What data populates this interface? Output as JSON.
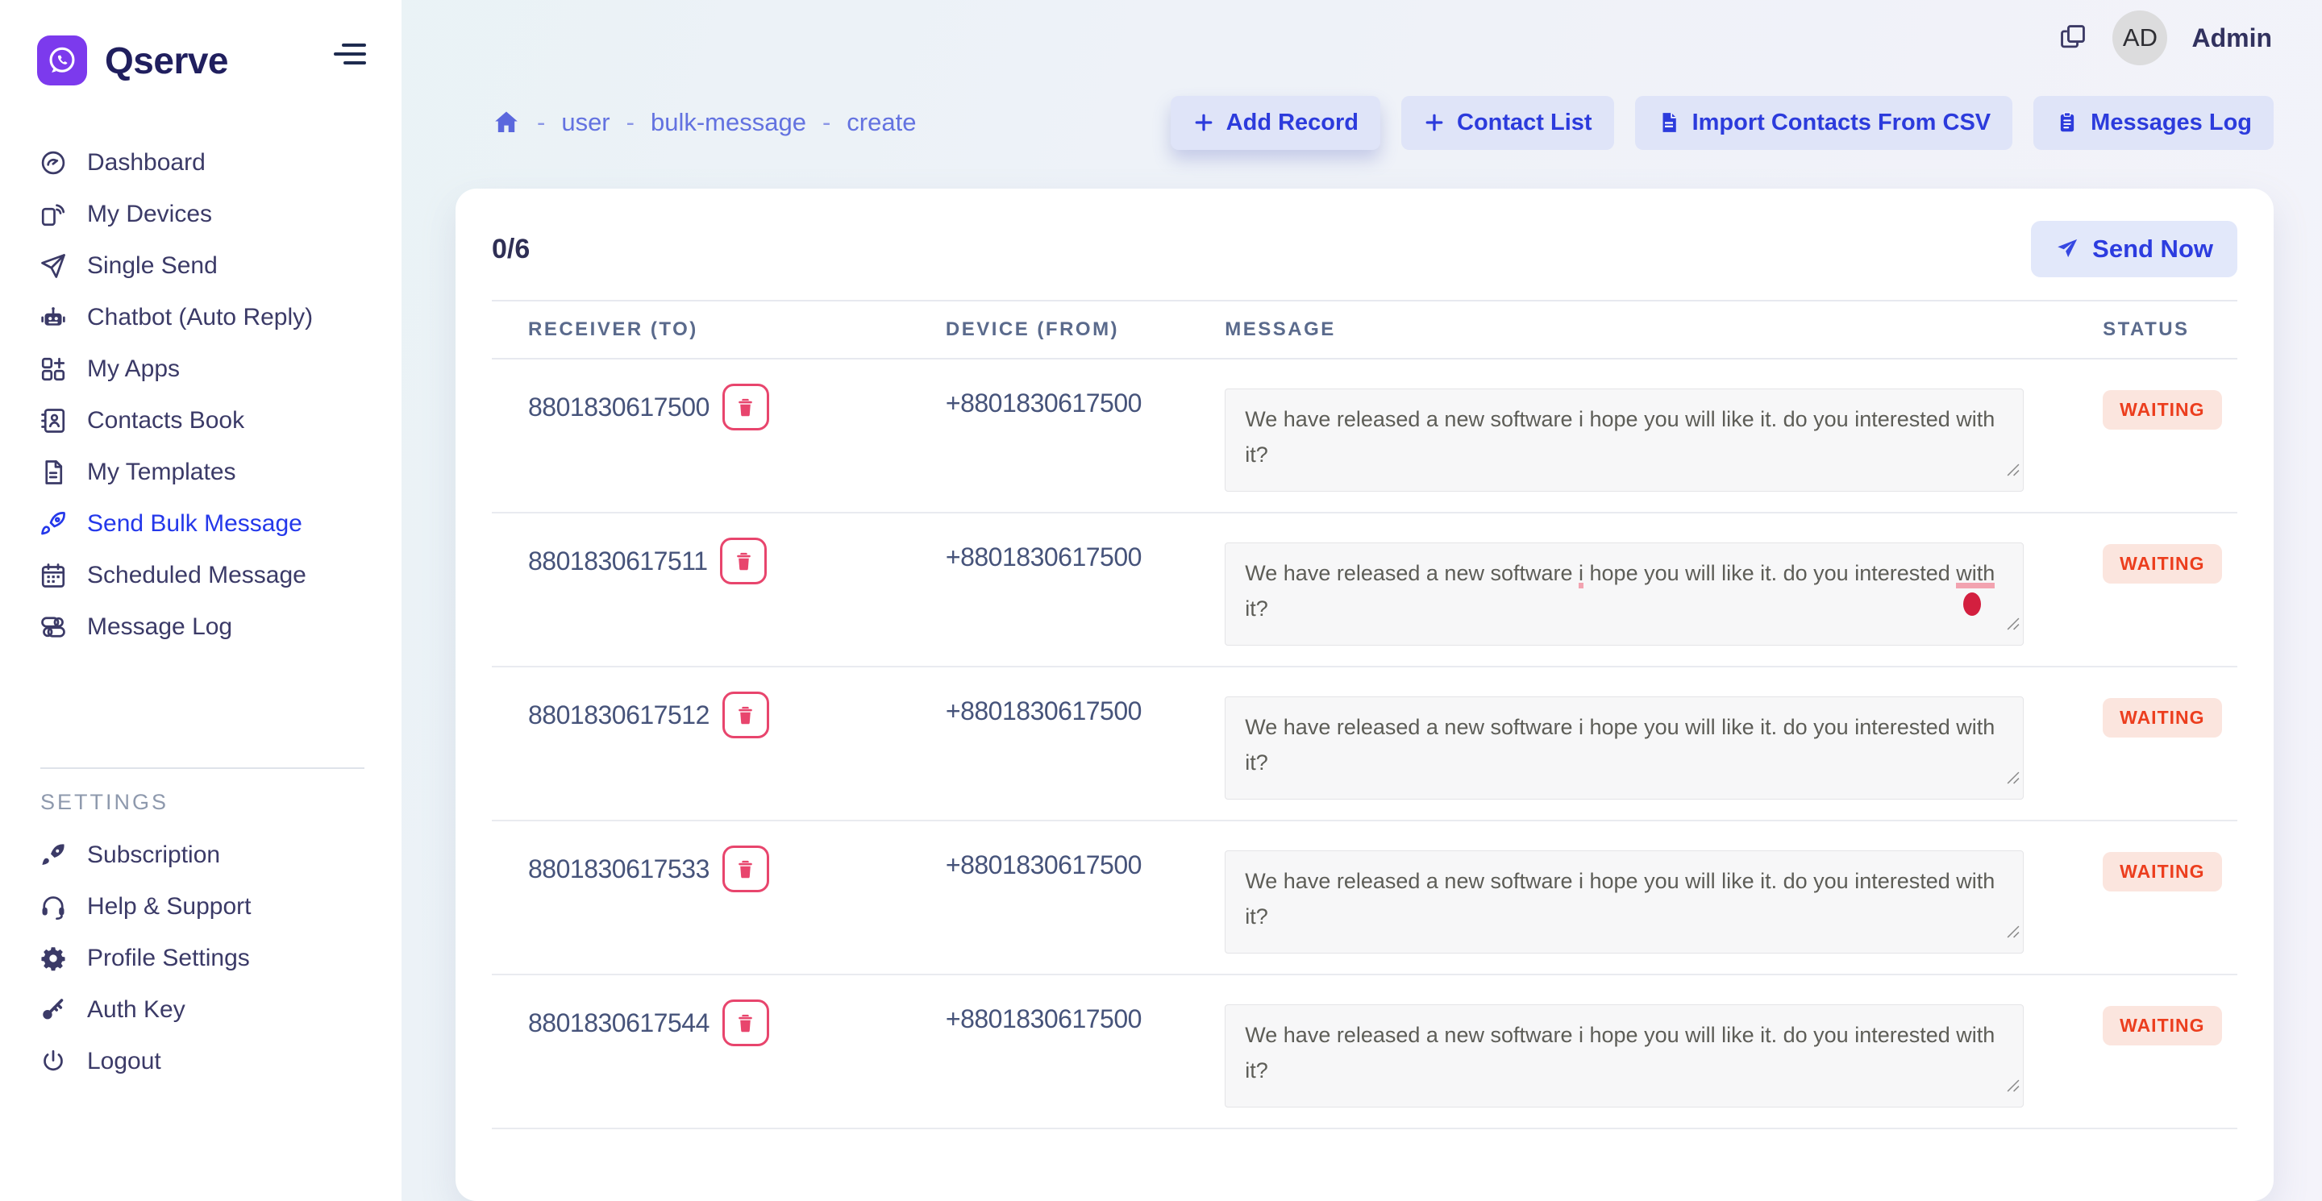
{
  "brand": {
    "name": "Qserve",
    "logo_icon": "whatsapp-phone"
  },
  "header": {
    "avatar_initials": "AD",
    "username": "Admin"
  },
  "sidebar": {
    "items": [
      {
        "label": "Dashboard",
        "icon": "dashboard",
        "active": false
      },
      {
        "label": "My Devices",
        "icon": "devices",
        "active": false
      },
      {
        "label": "Single Send",
        "icon": "send",
        "active": false
      },
      {
        "label": "Chatbot (Auto Reply)",
        "icon": "chatbot",
        "active": false
      },
      {
        "label": "My Apps",
        "icon": "apps",
        "active": false
      },
      {
        "label": "Contacts Book",
        "icon": "contacts",
        "active": false
      },
      {
        "label": "My Templates",
        "icon": "template",
        "active": false
      },
      {
        "label": "Send Bulk Message",
        "icon": "rocket",
        "active": true
      },
      {
        "label": "Scheduled Message",
        "icon": "calendar",
        "active": false
      },
      {
        "label": "Message Log",
        "icon": "message-log",
        "active": false
      }
    ],
    "settings_label": "SETTINGS",
    "settings_items": [
      {
        "label": "Subscription",
        "icon": "rocket-filled"
      },
      {
        "label": "Help & Support",
        "icon": "headset"
      },
      {
        "label": "Profile Settings",
        "icon": "gear"
      },
      {
        "label": "Auth Key",
        "icon": "key"
      },
      {
        "label": "Logout",
        "icon": "power"
      }
    ]
  },
  "breadcrumb": {
    "home_icon": "home",
    "separator": "-",
    "items": [
      "user",
      "bulk-message",
      "create"
    ]
  },
  "actions": [
    {
      "label": "Add Record",
      "icon": "plus",
      "elevated": true
    },
    {
      "label": "Contact List",
      "icon": "plus",
      "elevated": false
    },
    {
      "label": "Import Contacts From CSV",
      "icon": "csv",
      "elevated": false
    },
    {
      "label": "Messages Log",
      "icon": "clipboard",
      "elevated": false
    }
  ],
  "bulk": {
    "counter": "0/6",
    "send_label": "Send Now",
    "send_icon": "plane",
    "table": {
      "headers": [
        "RECEIVER (TO)",
        "DEVICE (FROM)",
        "MESSAGE",
        "STATUS"
      ],
      "rows": [
        {
          "receiver": "8801830617500",
          "device": "+8801830617500",
          "message": "We have released a new software i hope you will like it. do you interested with it?",
          "status": "WAITING",
          "marked_words": [],
          "grammar_dot": false
        },
        {
          "receiver": "8801830617511",
          "device": "+8801830617500",
          "message": "We have released a new software i hope you will like it. do you interested with it?",
          "status": "WAITING",
          "marked_words": [
            "i",
            "with"
          ],
          "grammar_dot": true
        },
        {
          "receiver": "8801830617512",
          "device": "+8801830617500",
          "message": "We have released a new software i hope you will like it. do you interested with it?",
          "status": "WAITING",
          "marked_words": [],
          "grammar_dot": false
        },
        {
          "receiver": "8801830617533",
          "device": "+8801830617500",
          "message": "We have released a new software i hope you will like it. do you interested with it?",
          "status": "WAITING",
          "marked_words": [],
          "grammar_dot": false
        },
        {
          "receiver": "8801830617544",
          "device": "+8801830617500",
          "message": "We have released a new software i hope you will like it. do you interested with it?",
          "status": "WAITING",
          "marked_words": [],
          "grammar_dot": false
        }
      ]
    }
  },
  "colors": {
    "brand_purple": "#7c3aed",
    "accent_blue": "#2c3bdc",
    "active_nav": "#2438ea",
    "button_bg": "#dfe4f8",
    "badge_bg": "#fbe5de",
    "badge_text": "#ec3e1e",
    "danger": "#e8456d",
    "sidebar_text": "#3b3a67",
    "breadcrumb": "#6372e0"
  }
}
